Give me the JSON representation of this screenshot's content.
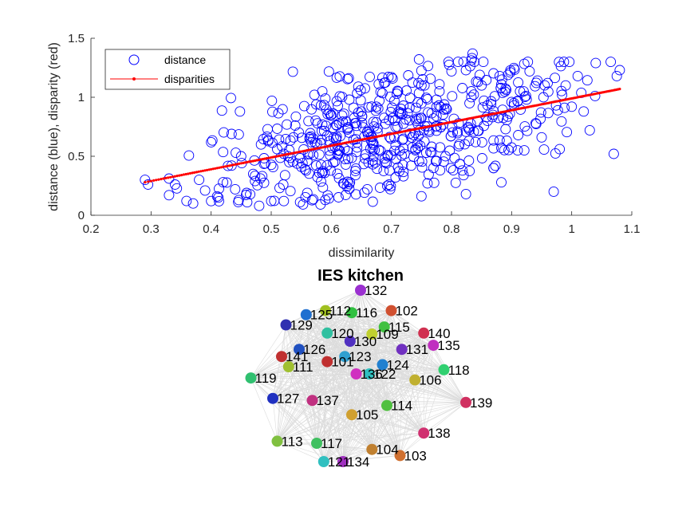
{
  "chart_data": [
    {
      "type": "scatter",
      "title": "",
      "xlabel": "dissimilarity",
      "ylabel": "distance (blue), disparity (red)",
      "xlim": [
        0.2,
        1.1
      ],
      "ylim": [
        0,
        1.5
      ],
      "xticks": [
        "0.2",
        "0.3",
        "0.4",
        "0.5",
        "0.6",
        "0.7",
        "0.8",
        "0.9",
        "1",
        "1.1"
      ],
      "yticks": [
        "0",
        "0.5",
        "1",
        "1.5"
      ],
      "grid": false,
      "legend_position": "top-left",
      "series": [
        {
          "name": "distance",
          "marker": "circle",
          "color": "#0000ff",
          "trend": "points scattered around the disparity line with spread of roughly ±0.4",
          "points": [
            [
              0.29,
              0.3
            ],
            [
              0.295,
              0.26
            ],
            [
              0.33,
              0.17
            ],
            [
              0.34,
              0.26
            ],
            [
              0.37,
              0.1
            ],
            [
              0.38,
              0.3
            ],
            [
              0.39,
              0.21
            ],
            [
              0.4,
              0.12
            ],
            [
              0.41,
              0.16
            ],
            [
              0.42,
              0.28
            ],
            [
              0.44,
              0.22
            ],
            [
              0.45,
              0.5
            ],
            [
              0.46,
              0.11
            ],
            [
              0.47,
              0.35
            ],
            [
              0.48,
              0.08
            ],
            [
              0.49,
              0.44
            ],
            [
              0.5,
              0.12
            ],
            [
              0.51,
              0.56
            ],
            [
              0.52,
              0.26
            ],
            [
              0.53,
              0.45
            ],
            [
              0.54,
              0.76
            ],
            [
              0.55,
              0.41
            ],
            [
              0.56,
              0.19
            ],
            [
              0.57,
              0.65
            ],
            [
              0.58,
              0.36
            ],
            [
              0.59,
              0.13
            ],
            [
              0.6,
              0.85
            ],
            [
              0.61,
              0.55
            ],
            [
              0.62,
              0.27
            ],
            [
              0.63,
              0.7
            ],
            [
              0.64,
              0.34
            ],
            [
              0.65,
              0.88
            ],
            [
              0.66,
              0.22
            ],
            [
              0.67,
              0.61
            ],
            [
              0.68,
              0.97
            ],
            [
              0.69,
              0.45
            ],
            [
              0.7,
              1.17
            ],
            [
              0.71,
              0.75
            ],
            [
              0.72,
              0.33
            ],
            [
              0.73,
              0.91
            ],
            [
              0.74,
              0.56
            ],
            [
              0.75,
              1.1
            ],
            [
              0.76,
              0.27
            ],
            [
              0.77,
              0.82
            ],
            [
              0.78,
              1.05
            ],
            [
              0.79,
              0.5
            ],
            [
              0.8,
              1.22
            ],
            [
              0.81,
              0.71
            ],
            [
              0.82,
              0.34
            ],
            [
              0.83,
              0.95
            ],
            [
              0.835,
              1.37
            ],
            [
              0.84,
              0.62
            ],
            [
              0.85,
              1.1
            ],
            [
              0.86,
              0.8
            ],
            [
              0.87,
              0.4
            ],
            [
              0.88,
              1.18
            ],
            [
              0.89,
              0.73
            ],
            [
              0.9,
              0.96
            ],
            [
              0.91,
              0.55
            ],
            [
              0.92,
              1.05
            ],
            [
              0.93,
              1.22
            ],
            [
              0.94,
              0.78
            ],
            [
              0.95,
              0.66
            ],
            [
              0.96,
              1.12
            ],
            [
              0.97,
              0.2
            ],
            [
              0.98,
              0.56
            ],
            [
              0.99,
              1.1
            ],
            [
              1.0,
              0.92
            ],
            [
              1.01,
              1.18
            ],
            [
              1.02,
              0.88
            ],
            [
              1.03,
              0.72
            ],
            [
              1.04,
              1.29
            ],
            [
              1.07,
              0.52
            ],
            [
              1.075,
              1.18
            ],
            [
              1.08,
              1.23
            ]
          ]
        },
        {
          "name": "disparities",
          "marker": "dot-line",
          "color": "#ff0000",
          "x_range": [
            0.29,
            1.08
          ],
          "y_range": [
            0.28,
            1.07
          ]
        }
      ]
    },
    {
      "type": "network",
      "title": "IES kitchen",
      "nodes": [
        {
          "label": "132",
          "x": 0.0,
          "y": 1.0,
          "color": "#9b30d0"
        },
        {
          "label": "102",
          "x": 0.35,
          "y": 0.8,
          "color": "#d05030"
        },
        {
          "label": "112",
          "x": -0.4,
          "y": 0.8,
          "color": "#a0c020"
        },
        {
          "label": "116",
          "x": -0.1,
          "y": 0.78,
          "color": "#30c040"
        },
        {
          "label": "125",
          "x": -0.62,
          "y": 0.76,
          "color": "#2070d0"
        },
        {
          "label": "129",
          "x": -0.85,
          "y": 0.66,
          "color": "#3030b0"
        },
        {
          "label": "115",
          "x": 0.27,
          "y": 0.64,
          "color": "#40c040"
        },
        {
          "label": "140",
          "x": 0.72,
          "y": 0.58,
          "color": "#d03050"
        },
        {
          "label": "120",
          "x": -0.38,
          "y": 0.58,
          "color": "#30c0a0"
        },
        {
          "label": "109",
          "x": 0.13,
          "y": 0.57,
          "color": "#c0d030"
        },
        {
          "label": "130",
          "x": -0.12,
          "y": 0.5,
          "color": "#5030c0"
        },
        {
          "label": "135",
          "x": 0.83,
          "y": 0.46,
          "color": "#c030c0"
        },
        {
          "label": "131",
          "x": 0.47,
          "y": 0.42,
          "color": "#7030c0"
        },
        {
          "label": "126",
          "x": -0.7,
          "y": 0.42,
          "color": "#2050c0"
        },
        {
          "label": "141",
          "x": -0.9,
          "y": 0.35,
          "color": "#c03030"
        },
        {
          "label": "123",
          "x": -0.18,
          "y": 0.35,
          "color": "#30a0d0"
        },
        {
          "label": "101",
          "x": -0.38,
          "y": 0.3,
          "color": "#c03030"
        },
        {
          "label": "124",
          "x": 0.25,
          "y": 0.27,
          "color": "#2080d0"
        },
        {
          "label": "111",
          "x": -0.82,
          "y": 0.25,
          "color": "#a0c030"
        },
        {
          "label": "118",
          "x": 0.95,
          "y": 0.22,
          "color": "#30d070"
        },
        {
          "label": "136",
          "x": -0.05,
          "y": 0.18,
          "color": "#d030c0"
        },
        {
          "label": "122",
          "x": 0.1,
          "y": 0.18,
          "color": "#30c0c0"
        },
        {
          "label": "119",
          "x": -1.25,
          "y": 0.14,
          "color": "#30c070"
        },
        {
          "label": "106",
          "x": 0.62,
          "y": 0.12,
          "color": "#c0b030"
        },
        {
          "label": "139",
          "x": 1.2,
          "y": -0.1,
          "color": "#d03060"
        },
        {
          "label": "127",
          "x": -1.0,
          "y": -0.06,
          "color": "#2030c0"
        },
        {
          "label": "137",
          "x": -0.55,
          "y": -0.08,
          "color": "#c03080"
        },
        {
          "label": "114",
          "x": 0.3,
          "y": -0.13,
          "color": "#50c040"
        },
        {
          "label": "105",
          "x": -0.1,
          "y": -0.22,
          "color": "#d0a030"
        },
        {
          "label": "138",
          "x": 0.72,
          "y": -0.4,
          "color": "#d03070"
        },
        {
          "label": "113",
          "x": -0.95,
          "y": -0.48,
          "color": "#80c040"
        },
        {
          "label": "117",
          "x": -0.5,
          "y": -0.5,
          "color": "#40c060"
        },
        {
          "label": "104",
          "x": 0.13,
          "y": -0.56,
          "color": "#c08030"
        },
        {
          "label": "103",
          "x": 0.45,
          "y": -0.62,
          "color": "#d07030"
        },
        {
          "label": "121",
          "x": -0.42,
          "y": -0.68,
          "color": "#30c0c0"
        },
        {
          "label": "134",
          "x": -0.2,
          "y": -0.68,
          "color": "#a030c0"
        }
      ]
    }
  ],
  "legend": {
    "distance_label": "distance",
    "disparities_label": "disparities"
  }
}
